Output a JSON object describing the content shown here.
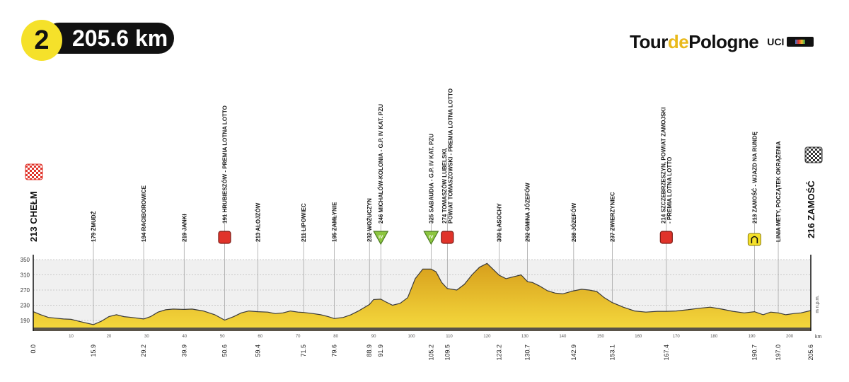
{
  "header": {
    "stage_number": "2",
    "distance": "205.6 km"
  },
  "brand": {
    "logo_part1": "Tour",
    "logo_part2": "de",
    "logo_part3": "Pologne",
    "uci": "UCI",
    "world_tour": "WORLD TOUR"
  },
  "colors": {
    "profile_fill_top": "#d79f1c",
    "profile_fill_bottom": "#f4d73c",
    "sprint_marker": "#e0332a",
    "kom_marker": "#8cc63f",
    "lap_marker": "#f5e12a",
    "band": "#f0f0f0"
  },
  "chart_data": {
    "type": "area",
    "title": "",
    "xlabel": "km",
    "ylabel": "m n.p.m.",
    "xlim": [
      0,
      205.6
    ],
    "ylim": [
      150,
      350
    ],
    "y_ticks": [
      190,
      230,
      270,
      310,
      350
    ],
    "x_ticks": [
      10,
      20,
      30,
      40,
      50,
      60,
      70,
      80,
      90,
      100,
      110,
      120,
      130,
      140,
      150,
      160,
      170,
      180,
      190,
      200
    ],
    "profile": {
      "x": [
        0,
        2,
        4,
        6,
        8,
        10,
        12,
        15.9,
        18,
        20,
        22,
        24,
        26,
        29.2,
        31,
        33,
        35,
        37,
        39.9,
        42,
        45,
        48,
        50.6,
        53,
        55,
        57,
        59.4,
        62,
        64,
        66,
        68,
        70,
        71.5,
        74,
        76,
        78,
        79.6,
        82,
        84,
        86,
        88.9,
        90,
        91.9,
        93,
        95,
        97,
        99,
        101,
        103,
        105.2,
        106.5,
        108,
        109.5,
        112,
        114,
        116,
        118,
        120,
        123.2,
        125,
        127,
        129,
        130.7,
        132,
        134,
        136,
        138,
        140,
        142.9,
        145,
        147,
        149,
        151,
        153.1,
        156,
        159,
        162,
        165,
        167.4,
        170,
        173,
        176,
        179,
        182,
        185,
        188,
        190.7,
        193,
        195,
        197.0,
        199,
        201,
        203,
        205.6
      ],
      "elevation": [
        213,
        205,
        198,
        196,
        194,
        193,
        188,
        179,
        188,
        200,
        205,
        200,
        198,
        194,
        200,
        212,
        218,
        220,
        219,
        220,
        215,
        205,
        191,
        200,
        210,
        215,
        213,
        212,
        208,
        210,
        215,
        212,
        211,
        208,
        205,
        200,
        195,
        198,
        205,
        215,
        232,
        245,
        246,
        240,
        230,
        235,
        250,
        300,
        325,
        325,
        318,
        290,
        274,
        270,
        285,
        310,
        330,
        340,
        309,
        300,
        305,
        310,
        292,
        290,
        280,
        268,
        262,
        260,
        268,
        272,
        270,
        266,
        250,
        237,
        225,
        215,
        212,
        214,
        214,
        215,
        218,
        222,
        225,
        220,
        214,
        210,
        213,
        205,
        212,
        210,
        205,
        208,
        210,
        216
      ]
    },
    "cumulative_km": [
      "0.0",
      "15.9",
      "29.2",
      "39.9",
      "50.6",
      "59.4",
      "71.5",
      "79.6",
      "88.9",
      "91.9",
      "105.2",
      "109.5",
      "123.2",
      "130.7",
      "142.9",
      "153.1",
      "167.4",
      "190.7",
      "197.0",
      "205.6"
    ],
    "start": {
      "km": 0.0,
      "label": "213 CHEŁM"
    },
    "finish": {
      "km": 205.6,
      "label": "216 ZAMOŚĆ"
    },
    "waypoints": [
      {
        "km": 15.9,
        "label": "179 ŻMUDŹ",
        "marker": ""
      },
      {
        "km": 29.2,
        "label": "194 RACIBOROWICE",
        "marker": ""
      },
      {
        "km": 39.9,
        "label": "219 JANKI",
        "marker": ""
      },
      {
        "km": 50.6,
        "label": "191 HRUBIESZÓW - PREMIA LOTNA LOTTO",
        "marker": "sprint"
      },
      {
        "km": 59.4,
        "label": "213 ALOJZÓW",
        "marker": ""
      },
      {
        "km": 71.5,
        "label": "211 LIPOWIEC",
        "marker": ""
      },
      {
        "km": 79.6,
        "label": "195 ZAMŁYNIE",
        "marker": ""
      },
      {
        "km": 88.9,
        "label": "232 WOŹUCZYN",
        "marker": ""
      },
      {
        "km": 91.9,
        "label": "246 MICHALÓW-KOLONIA - G.P. IV KAT. PZU",
        "marker": "kom"
      },
      {
        "km": 105.2,
        "label": "325 SABAUDIA - G.P. IV KAT. PZU",
        "marker": "kom"
      },
      {
        "km": 109.5,
        "label": "274 TOMASZÓW LUBELSKI, POWIAT TOMASZOWSKI - PREMIA LOTNA LOTTO",
        "marker": "sprint"
      },
      {
        "km": 123.2,
        "label": "309 ŁASOCHY",
        "marker": ""
      },
      {
        "km": 130.7,
        "label": "292 GMINA JÓZEFÓW",
        "marker": ""
      },
      {
        "km": 142.9,
        "label": "268 JÓZEFÓW",
        "marker": ""
      },
      {
        "km": 153.1,
        "label": "237 ZWIERZYNIEC",
        "marker": ""
      },
      {
        "km": 167.4,
        "label": "214 SZCZEBRZESZYN, POWIAT ZAMOJSKI - PREMIA LOTNA LOTTO",
        "marker": "sprint"
      },
      {
        "km": 190.7,
        "label": "213 ZAMOŚĆ - WJAZD NA RUNDĘ",
        "marker": "lap"
      },
      {
        "km": 197.0,
        "label": "LINIA METY, POCZĄTEK OKRĄŻENIA",
        "marker": ""
      }
    ],
    "label_lines": {
      "109.5": [
        "274 TOMASZÓW LUBELSKI,",
        "POWIAT TOMASZOWSKI - PREMIA LOTNA LOTTO"
      ],
      "167.4": [
        "214 SZCZEBRZESZYN, POWIAT ZAMOJSKI",
        "- PREMIA LOTNA LOTTO"
      ],
      "197.0": [
        "LINIA METY, POCZĄTEK OKRĄŻENIA"
      ]
    },
    "kom_category": "IV",
    "axis_unit_right": "m n.p.m.",
    "axis_unit_km": "km"
  }
}
